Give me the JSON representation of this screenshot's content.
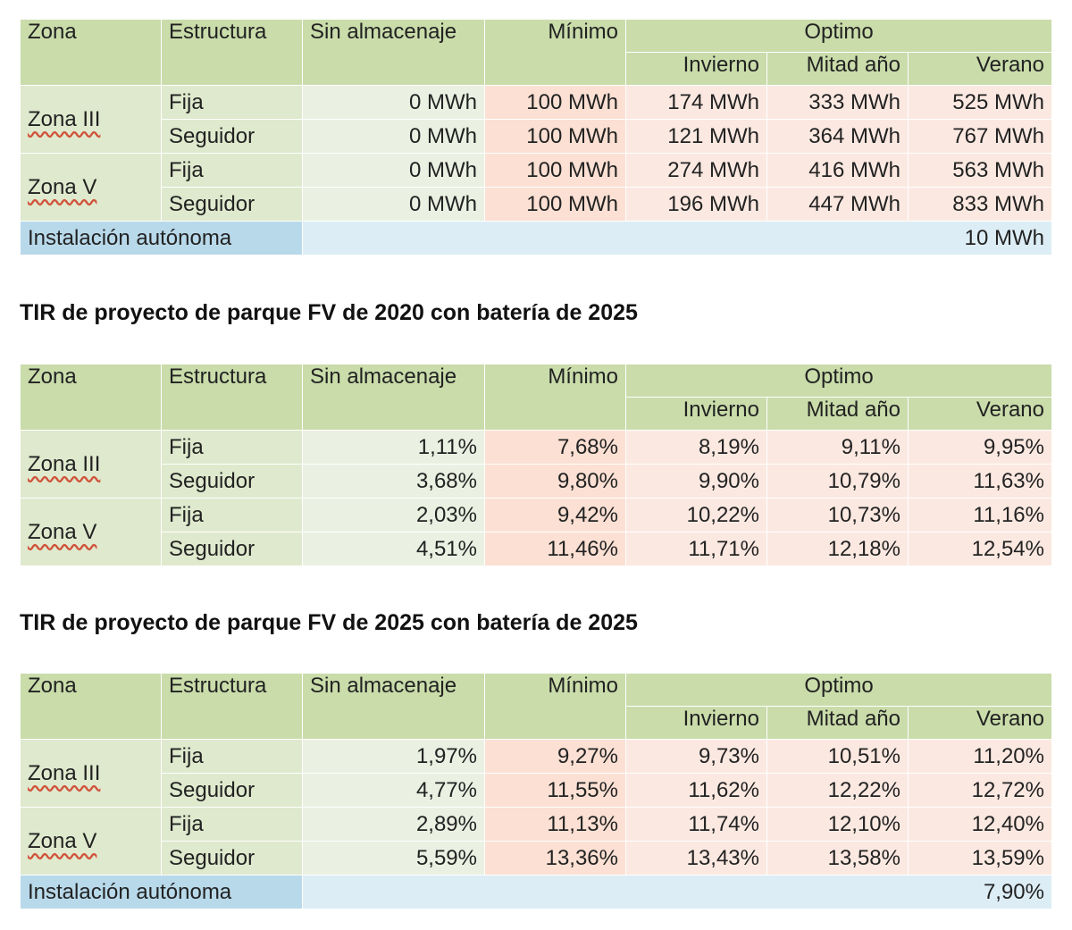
{
  "headers": {
    "zona": "Zona",
    "estructura": "Estructura",
    "sin": "Sin almacenaje",
    "minimo": "Mínimo",
    "optimo": "Optimo",
    "invierno": "Invierno",
    "mitad": "Mitad año",
    "verano": "Verano"
  },
  "zones": {
    "z3": "Zona III",
    "z5": "Zona V"
  },
  "structures": {
    "fija": "Fija",
    "seguidor": "Seguidor"
  },
  "autonomous_label": "Instalación autónoma",
  "title_2": "TIR de proyecto de parque FV de 2020 con batería de 2025",
  "title_3": "TIR de proyecto de parque FV de 2025 con batería de 2025",
  "table1": {
    "rows": [
      [
        "0 MWh",
        "100 MWh",
        "174 MWh",
        "333 MWh",
        "525 MWh"
      ],
      [
        "0 MWh",
        "100 MWh",
        "121 MWh",
        "364 MWh",
        "767 MWh"
      ],
      [
        "0 MWh",
        "100 MWh",
        "274 MWh",
        "416 MWh",
        "563 MWh"
      ],
      [
        "0 MWh",
        "100 MWh",
        "196 MWh",
        "447 MWh",
        "833 MWh"
      ]
    ],
    "autonomous_value": "10 MWh"
  },
  "table2": {
    "rows": [
      [
        "1,11%",
        "7,68%",
        "8,19%",
        "9,11%",
        "9,95%"
      ],
      [
        "3,68%",
        "9,80%",
        "9,90%",
        "10,79%",
        "11,63%"
      ],
      [
        "2,03%",
        "9,42%",
        "10,22%",
        "10,73%",
        "11,16%"
      ],
      [
        "4,51%",
        "11,46%",
        "11,71%",
        "12,18%",
        "12,54%"
      ]
    ]
  },
  "table3": {
    "rows": [
      [
        "1,97%",
        "9,27%",
        "9,73%",
        "10,51%",
        "11,20%"
      ],
      [
        "4,77%",
        "11,55%",
        "11,62%",
        "12,22%",
        "12,72%"
      ],
      [
        "2,89%",
        "11,13%",
        "11,74%",
        "12,10%",
        "12,40%"
      ],
      [
        "5,59%",
        "13,36%",
        "13,43%",
        "13,58%",
        "13,59%"
      ]
    ],
    "autonomous_value": "7,90%"
  }
}
